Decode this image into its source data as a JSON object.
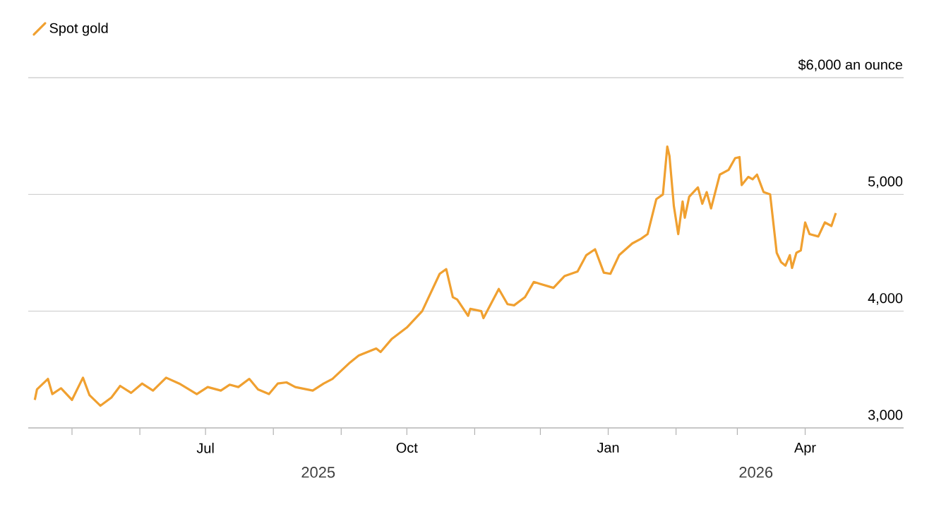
{
  "chart_data": {
    "type": "line",
    "legend": "top left",
    "grid": "y",
    "xlim": [
      "2025-04-11",
      "2026-05-16"
    ],
    "xticks": [
      {
        "value": "2025-05-01",
        "label": null
      },
      {
        "value": "2025-06-01",
        "label": null
      },
      {
        "value": "2025-07-01",
        "label": "Jul"
      },
      {
        "value": "2025-08-01",
        "label": null
      },
      {
        "value": "2025-09-01",
        "label": null
      },
      {
        "value": "2025-10-01",
        "label": "Oct"
      },
      {
        "value": "2025-11-01",
        "label": null
      },
      {
        "value": "2025-12-01",
        "label": null
      },
      {
        "value": "2026-01-01",
        "label": "Jan"
      },
      {
        "value": "2026-02-01",
        "label": null
      },
      {
        "value": "2026-03-01",
        "label": null
      },
      {
        "value": "2026-04-01",
        "label": "Apr"
      }
    ],
    "ylim": [
      3000,
      6000
    ],
    "yticks": [
      {
        "value": 3000,
        "label": "3,000"
      },
      {
        "value": 4000,
        "label": "4,000"
      },
      {
        "value": 5000,
        "label": "5,000"
      },
      {
        "value": 6000,
        "label": "$6,000 an ounce"
      }
    ],
    "annotations": [
      "2025",
      "2026"
    ],
    "series": [
      {
        "name": "Spot gold",
        "color": "#f0a030",
        "x": [
          "2025-04-14",
          "2025-04-15",
          "2025-04-20",
          "2025-04-22",
          "2025-04-26",
          "2025-05-01",
          "2025-05-06",
          "2025-05-09",
          "2025-05-14",
          "2025-05-19",
          "2025-05-23",
          "2025-05-28",
          "2025-06-02",
          "2025-06-07",
          "2025-06-13",
          "2025-06-19",
          "2025-06-27",
          "2025-07-02",
          "2025-07-08",
          "2025-07-12",
          "2025-07-16",
          "2025-07-21",
          "2025-07-25",
          "2025-07-30",
          "2025-08-03",
          "2025-08-07",
          "2025-08-11",
          "2025-08-19",
          "2025-08-24",
          "2025-08-28",
          "2025-09-05",
          "2025-09-09",
          "2025-09-17",
          "2025-09-19",
          "2025-09-24",
          "2025-10-01",
          "2025-10-08",
          "2025-10-16",
          "2025-10-19",
          "2025-10-22",
          "2025-10-24",
          "2025-10-29",
          "2025-10-30",
          "2025-11-04",
          "2025-11-05",
          "2025-11-12",
          "2025-11-16",
          "2025-11-19",
          "2025-11-24",
          "2025-11-28",
          "2025-12-07",
          "2025-12-12",
          "2025-12-18",
          "2025-12-22",
          "2025-12-26",
          "2025-12-30",
          "2026-01-02",
          "2026-01-06",
          "2026-01-12",
          "2026-01-16",
          "2026-01-19",
          "2026-01-23",
          "2026-01-26",
          "2026-01-28",
          "2026-01-29",
          "2026-01-31",
          "2026-02-02",
          "2026-02-04",
          "2026-02-05",
          "2026-02-07",
          "2026-02-11",
          "2026-02-13",
          "2026-02-15",
          "2026-02-17",
          "2026-02-21",
          "2026-02-25",
          "2026-02-28",
          "2026-03-02",
          "2026-03-03",
          "2026-03-06",
          "2026-03-08",
          "2026-03-10",
          "2026-03-13",
          "2026-03-16",
          "2026-03-19",
          "2026-03-21",
          "2026-03-23",
          "2026-03-25",
          "2026-03-26",
          "2026-03-28",
          "2026-03-30",
          "2026-04-01",
          "2026-04-03",
          "2026-04-07",
          "2026-04-10",
          "2026-04-13",
          "2026-04-15"
        ],
        "values": [
          3240,
          3330,
          3420,
          3290,
          3340,
          3240,
          3430,
          3280,
          3190,
          3260,
          3360,
          3300,
          3380,
          3320,
          3430,
          3380,
          3290,
          3350,
          3320,
          3370,
          3350,
          3420,
          3330,
          3290,
          3380,
          3390,
          3350,
          3320,
          3380,
          3420,
          3560,
          3620,
          3680,
          3650,
          3760,
          3860,
          4000,
          4320,
          4360,
          4120,
          4100,
          3960,
          4020,
          4000,
          3940,
          4190,
          4060,
          4050,
          4120,
          4250,
          4200,
          4300,
          4340,
          4480,
          4530,
          4330,
          4320,
          4480,
          4580,
          4620,
          4660,
          4960,
          5000,
          5410,
          5330,
          4900,
          4660,
          4940,
          4800,
          4980,
          5060,
          4920,
          5020,
          4880,
          5170,
          5210,
          5310,
          5320,
          5080,
          5150,
          5130,
          5170,
          5020,
          5000,
          4500,
          4420,
          4390,
          4480,
          4370,
          4500,
          4520,
          4760,
          4660,
          4640,
          4760,
          4730,
          4840
        ]
      }
    ]
  }
}
